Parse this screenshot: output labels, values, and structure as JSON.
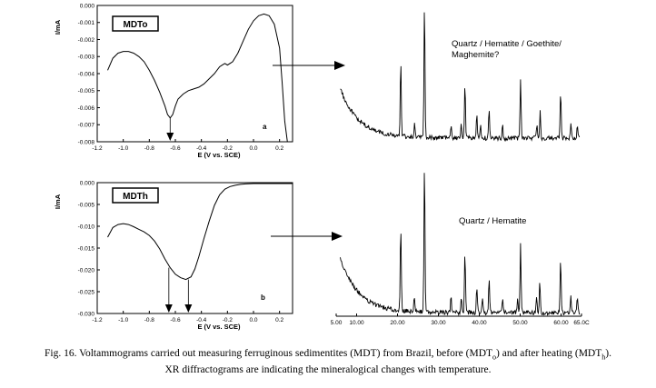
{
  "chart_data": [
    {
      "type": "line",
      "panel": "a",
      "label": "MDTo",
      "xlabel": "E (V vs. SCE)",
      "ylabel": "I/mA",
      "xlim": [
        -1.2,
        0.3
      ],
      "ylim": [
        -0.008,
        0.0
      ],
      "xticks": [
        "-1.2",
        "-1.0",
        "-0.8",
        "-0.6",
        "-0.4",
        "-0.2",
        "0.0",
        "0.2"
      ],
      "yticks": [
        "0.000",
        "-0.001",
        "-0.002",
        "-0.003",
        "-0.004",
        "-0.005",
        "-0.006",
        "-0.007",
        "-0.008"
      ],
      "peak_markers": [
        -0.64
      ],
      "x": [
        -1.12,
        -1.08,
        -1.04,
        -1.0,
        -0.96,
        -0.92,
        -0.88,
        -0.84,
        -0.8,
        -0.76,
        -0.72,
        -0.68,
        -0.66,
        -0.64,
        -0.62,
        -0.6,
        -0.58,
        -0.54,
        -0.5,
        -0.46,
        -0.42,
        -0.38,
        -0.34,
        -0.3,
        -0.26,
        -0.24,
        -0.22,
        -0.2,
        -0.16,
        -0.12,
        -0.08,
        -0.04,
        0.0,
        0.04,
        0.08,
        0.12,
        0.16,
        0.2,
        0.22,
        0.24,
        0.26
      ],
      "y": [
        -0.0038,
        -0.0031,
        -0.0028,
        -0.0027,
        -0.0027,
        -0.0028,
        -0.003,
        -0.0033,
        -0.0038,
        -0.0044,
        -0.0051,
        -0.0059,
        -0.0064,
        -0.0066,
        -0.0064,
        -0.0059,
        -0.0055,
        -0.0052,
        -0.005,
        -0.0049,
        -0.0048,
        -0.0046,
        -0.0043,
        -0.004,
        -0.0036,
        -0.0035,
        -0.0034,
        -0.0035,
        -0.0033,
        -0.0028,
        -0.0021,
        -0.0014,
        -0.0009,
        -0.0006,
        -0.0005,
        -0.0006,
        -0.0011,
        -0.0025,
        -0.0045,
        -0.0068,
        -0.008
      ]
    },
    {
      "type": "line",
      "panel": "b",
      "label": "MDTh",
      "xlabel": "E (V vs. SCE)",
      "ylabel": "I/mA",
      "xlim": [
        -1.2,
        0.3
      ],
      "ylim": [
        -0.03,
        0.0
      ],
      "xticks": [
        "-1.2",
        "-1.0",
        "-0.8",
        "-0.6",
        "-0.4",
        "-0.2",
        "0.0",
        "0.2"
      ],
      "yticks": [
        "0.000",
        "-0.005",
        "-0.010",
        "-0.015",
        "-0.020",
        "-0.025",
        "-0.030"
      ],
      "peak_markers": [
        -0.65,
        -0.5
      ],
      "x": [
        -1.12,
        -1.08,
        -1.04,
        -1.0,
        -0.96,
        -0.92,
        -0.88,
        -0.84,
        -0.8,
        -0.76,
        -0.72,
        -0.68,
        -0.64,
        -0.6,
        -0.56,
        -0.52,
        -0.48,
        -0.45,
        -0.42,
        -0.38,
        -0.34,
        -0.3,
        -0.26,
        -0.22,
        -0.18,
        -0.14,
        -0.1,
        -0.06,
        0.0,
        0.1,
        0.2,
        0.3
      ],
      "y": [
        -0.0125,
        -0.0103,
        -0.0096,
        -0.0094,
        -0.0096,
        -0.0101,
        -0.0107,
        -0.0113,
        -0.0121,
        -0.0134,
        -0.0152,
        -0.0175,
        -0.0195,
        -0.021,
        -0.0218,
        -0.0222,
        -0.0216,
        -0.0198,
        -0.017,
        -0.0128,
        -0.0088,
        -0.0052,
        -0.0028,
        -0.0015,
        -0.0009,
        -0.0006,
        -0.0004,
        -0.0003,
        -0.0002,
        -0.0002,
        -0.0002,
        -0.0002
      ]
    },
    {
      "type": "line",
      "panel": "XRD-a",
      "annotation_lines": [
        "Quartz / Hematite / Goethite/",
        "Maghemite?"
      ],
      "peaks_2theta": [
        20.8,
        24.2,
        26.6,
        33.1,
        35.6,
        36.5,
        39.4,
        40.3,
        42.4,
        45.7,
        50.1,
        54.1,
        54.9,
        59.9,
        62.4,
        64.0
      ]
    },
    {
      "type": "line",
      "panel": "XRD-b",
      "annotation_lines": [
        "Quartz / Hematite"
      ],
      "xticks": [
        "5.00",
        "10.00",
        "20.00",
        "30.00",
        "40.00",
        "50.00",
        "60.00",
        "65.0C"
      ],
      "xlim": [
        5,
        65
      ],
      "peaks_2theta": [
        20.8,
        24.1,
        26.6,
        33.1,
        35.6,
        36.5,
        39.4,
        40.8,
        42.4,
        45.7,
        49.4,
        50.1,
        54.0,
        54.8,
        59.9,
        62.4,
        64.0
      ]
    }
  ],
  "caption": {
    "line1_part1": "Fig. 16. Voltammograms carried out measuring ferruginous sedimentites (MDT) from Brazil, before (MDT",
    "sub1": "o",
    "line1_part2": ") and after heating (MDT",
    "sub2": "h",
    "line1_part3": ").",
    "line2": "XR diffractograms are indicating the mineralogical changes with temperature."
  }
}
